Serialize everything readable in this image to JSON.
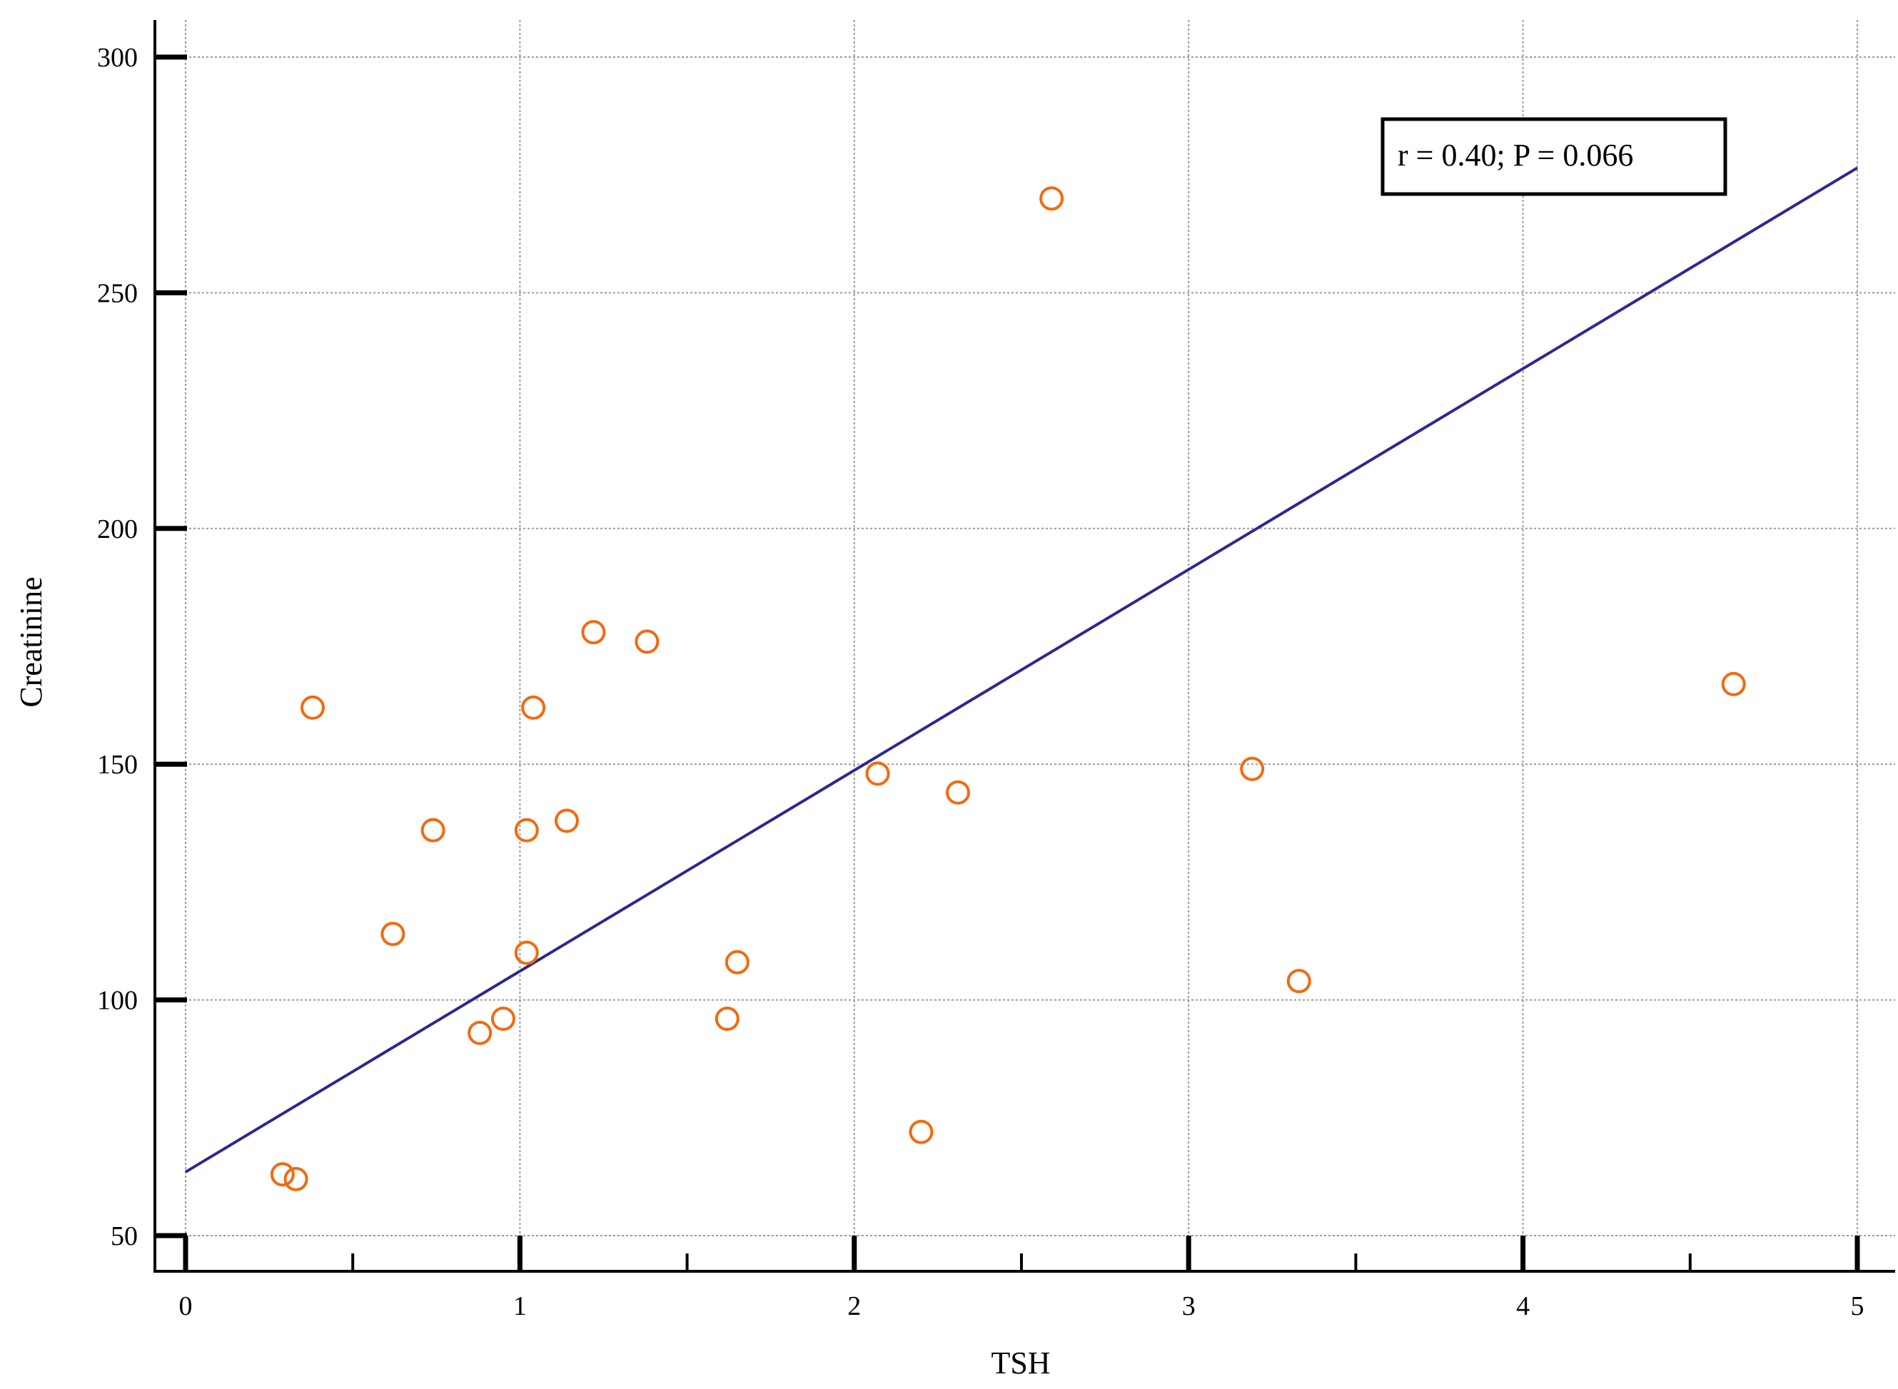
{
  "chart_data": {
    "type": "scatter",
    "xlabel": "TSH",
    "ylabel": "Creatinine",
    "xlim": [
      0,
      5
    ],
    "ylim": [
      50,
      300
    ],
    "x_ticks": [
      0,
      1,
      2,
      3,
      4,
      5
    ],
    "x_tick_labels": [
      "0",
      "1",
      "2",
      "3",
      "4",
      "5"
    ],
    "x_minor_ticks": [
      0.5,
      1.5,
      2.5,
      3.5,
      4.5
    ],
    "y_ticks": [
      50,
      100,
      150,
      200,
      250,
      300
    ],
    "y_tick_labels": [
      "50",
      "100",
      "150",
      "200",
      "250",
      "300"
    ],
    "grid": true,
    "annotation": "r = 0.40; P = 0.066",
    "annotation_position": "top-right",
    "marker_color": "#f26a10",
    "line_color": "#2a2a8f",
    "series": [
      {
        "points": [
          {
            "x": 0.29,
            "y": 63
          },
          {
            "x": 0.33,
            "y": 62
          },
          {
            "x": 0.38,
            "y": 162
          },
          {
            "x": 0.62,
            "y": 114
          },
          {
            "x": 0.74,
            "y": 136
          },
          {
            "x": 0.88,
            "y": 93
          },
          {
            "x": 0.95,
            "y": 96
          },
          {
            "x": 1.02,
            "y": 136
          },
          {
            "x": 1.02,
            "y": 110
          },
          {
            "x": 1.04,
            "y": 162
          },
          {
            "x": 1.14,
            "y": 138
          },
          {
            "x": 1.22,
            "y": 178
          },
          {
            "x": 1.38,
            "y": 176
          },
          {
            "x": 1.62,
            "y": 96
          },
          {
            "x": 1.65,
            "y": 108
          },
          {
            "x": 2.07,
            "y": 148
          },
          {
            "x": 2.2,
            "y": 72
          },
          {
            "x": 2.31,
            "y": 144
          },
          {
            "x": 2.59,
            "y": 270
          },
          {
            "x": 3.19,
            "y": 149
          },
          {
            "x": 3.33,
            "y": 104
          },
          {
            "x": 4.63,
            "y": 167
          }
        ]
      }
    ],
    "regression_line": {
      "x": [
        0,
        5
      ],
      "y": [
        63.5,
        276.5
      ]
    }
  }
}
